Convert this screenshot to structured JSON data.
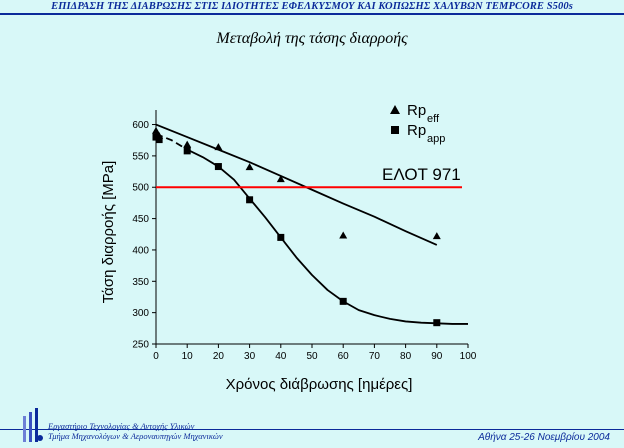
{
  "header": {
    "title": "ΕΠΙΔΡΑΣΗ ΤΗΣ ΔΙΑΒΡΩΣΗΣ ΣΤΙΣ ΙΔΙΟΤΗΤΕΣ ΕΦΕΛΚΥΣΜΟΥ ΚΑΙ ΚΟΠΩΣΗΣ ΧΑΛΥΒΩΝ  TEMPCORE S500s",
    "subtitle": "Μεταβολή της τάσης διαρροής"
  },
  "footer": {
    "lab_line1": "Εργαστήριο Τεχνολογίας & Αντοχής Υλικών",
    "lab_line2": "Τμήμα Μηχανολόγων & Αεροναυπηγών Μηχανικών",
    "date": "Αθήνα 25-26 Νοεμβρίου 2004"
  },
  "colors": {
    "background": "#d8f8f8",
    "header_blue": "#0b2a9a",
    "reference_line": "#ff0000",
    "data": "#000000"
  },
  "chart_data": {
    "type": "scatter",
    "xlabel": "Χρόνος διάβρωσης [ημέρες]",
    "ylabel": "Τάση διαρροής [MPa]",
    "xlim": [
      0,
      100
    ],
    "ylim": [
      250,
      620
    ],
    "x_ticks": [
      0,
      10,
      20,
      30,
      40,
      50,
      60,
      70,
      80,
      90,
      100
    ],
    "y_ticks": [
      250,
      300,
      350,
      400,
      450,
      500,
      550,
      600
    ],
    "grid": false,
    "legend_position": "top-right",
    "series": [
      {
        "name": "Rp",
        "name_sub": "eff",
        "marker": "triangle",
        "x": [
          0,
          1,
          10,
          20,
          30,
          40,
          60,
          90
        ],
        "y": [
          590,
          582,
          568,
          564,
          532,
          513,
          423,
          422
        ],
        "fit": {
          "style": "solid",
          "x": [
            0,
            10,
            20,
            30,
            40,
            50,
            60,
            70,
            80,
            90
          ],
          "y": [
            600,
            580,
            560,
            540,
            518,
            496,
            474,
            453,
            430,
            408
          ]
        }
      },
      {
        "name": "Rp",
        "name_sub": "app",
        "marker": "square",
        "x": [
          0,
          1,
          10,
          20,
          30,
          40,
          60,
          90
        ],
        "y": [
          580,
          576,
          558,
          533,
          480,
          420,
          318,
          284
        ],
        "fit": {
          "style": "dashed-then-solid",
          "x": [
            0,
            5,
            10,
            15,
            20,
            25,
            30,
            35,
            40,
            45,
            50,
            55,
            60,
            65,
            70,
            75,
            80,
            85,
            90,
            95,
            100
          ],
          "y": [
            585,
            575,
            560,
            548,
            533,
            512,
            482,
            452,
            420,
            388,
            360,
            336,
            318,
            304,
            296,
            290,
            286,
            284,
            283,
            282,
            282
          ]
        }
      }
    ],
    "reference_line": {
      "label": "ΕΛΟΤ 971",
      "y": 500
    }
  }
}
